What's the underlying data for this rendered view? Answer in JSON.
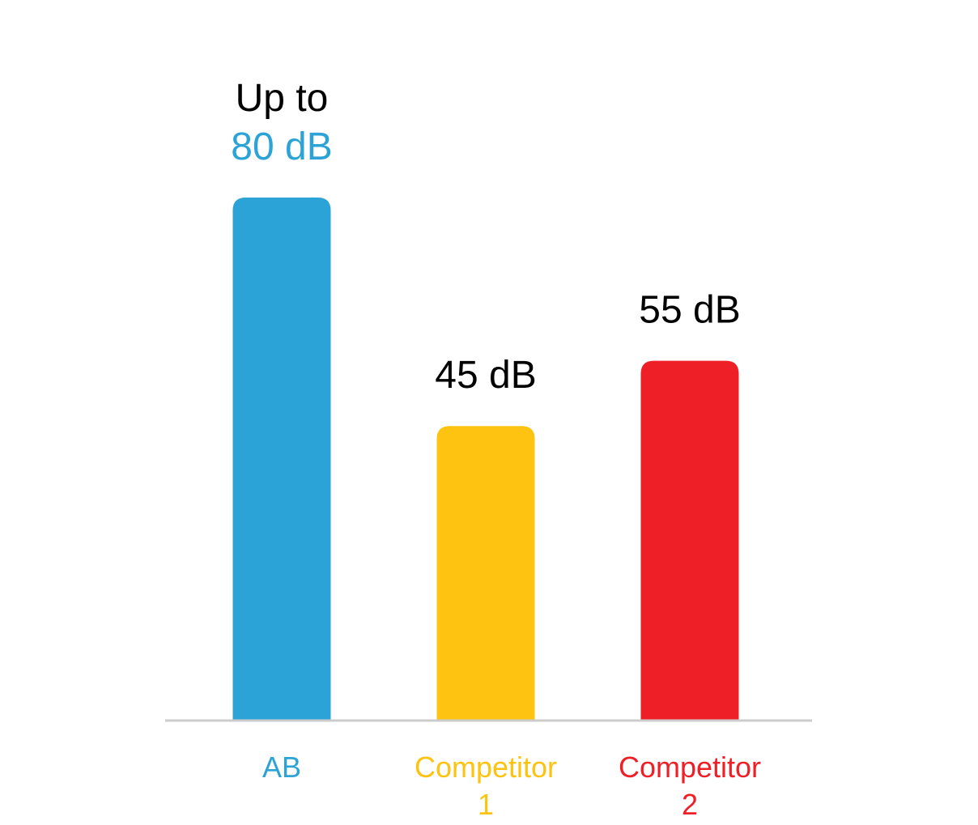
{
  "chart_data": {
    "type": "bar",
    "categories": [
      [
        "AB"
      ],
      [
        "Competitor",
        "1"
      ],
      [
        "Competitor",
        "2"
      ]
    ],
    "values": [
      80,
      45,
      55
    ],
    "value_labels": [
      {
        "prefix": "Up to",
        "text": "80 dB"
      },
      {
        "prefix": "",
        "text": "45 dB"
      },
      {
        "prefix": "",
        "text": "55 dB"
      }
    ],
    "colors": [
      "#2ca3d6",
      "#fdc310",
      "#ee1f26"
    ],
    "value_label_colors": [
      "#2ca3d6",
      "#000000",
      "#000000"
    ],
    "axis_color": "#cccccc",
    "ylim": [
      0,
      80
    ],
    "grid": false,
    "title": "",
    "xlabel": "",
    "ylabel": ""
  }
}
